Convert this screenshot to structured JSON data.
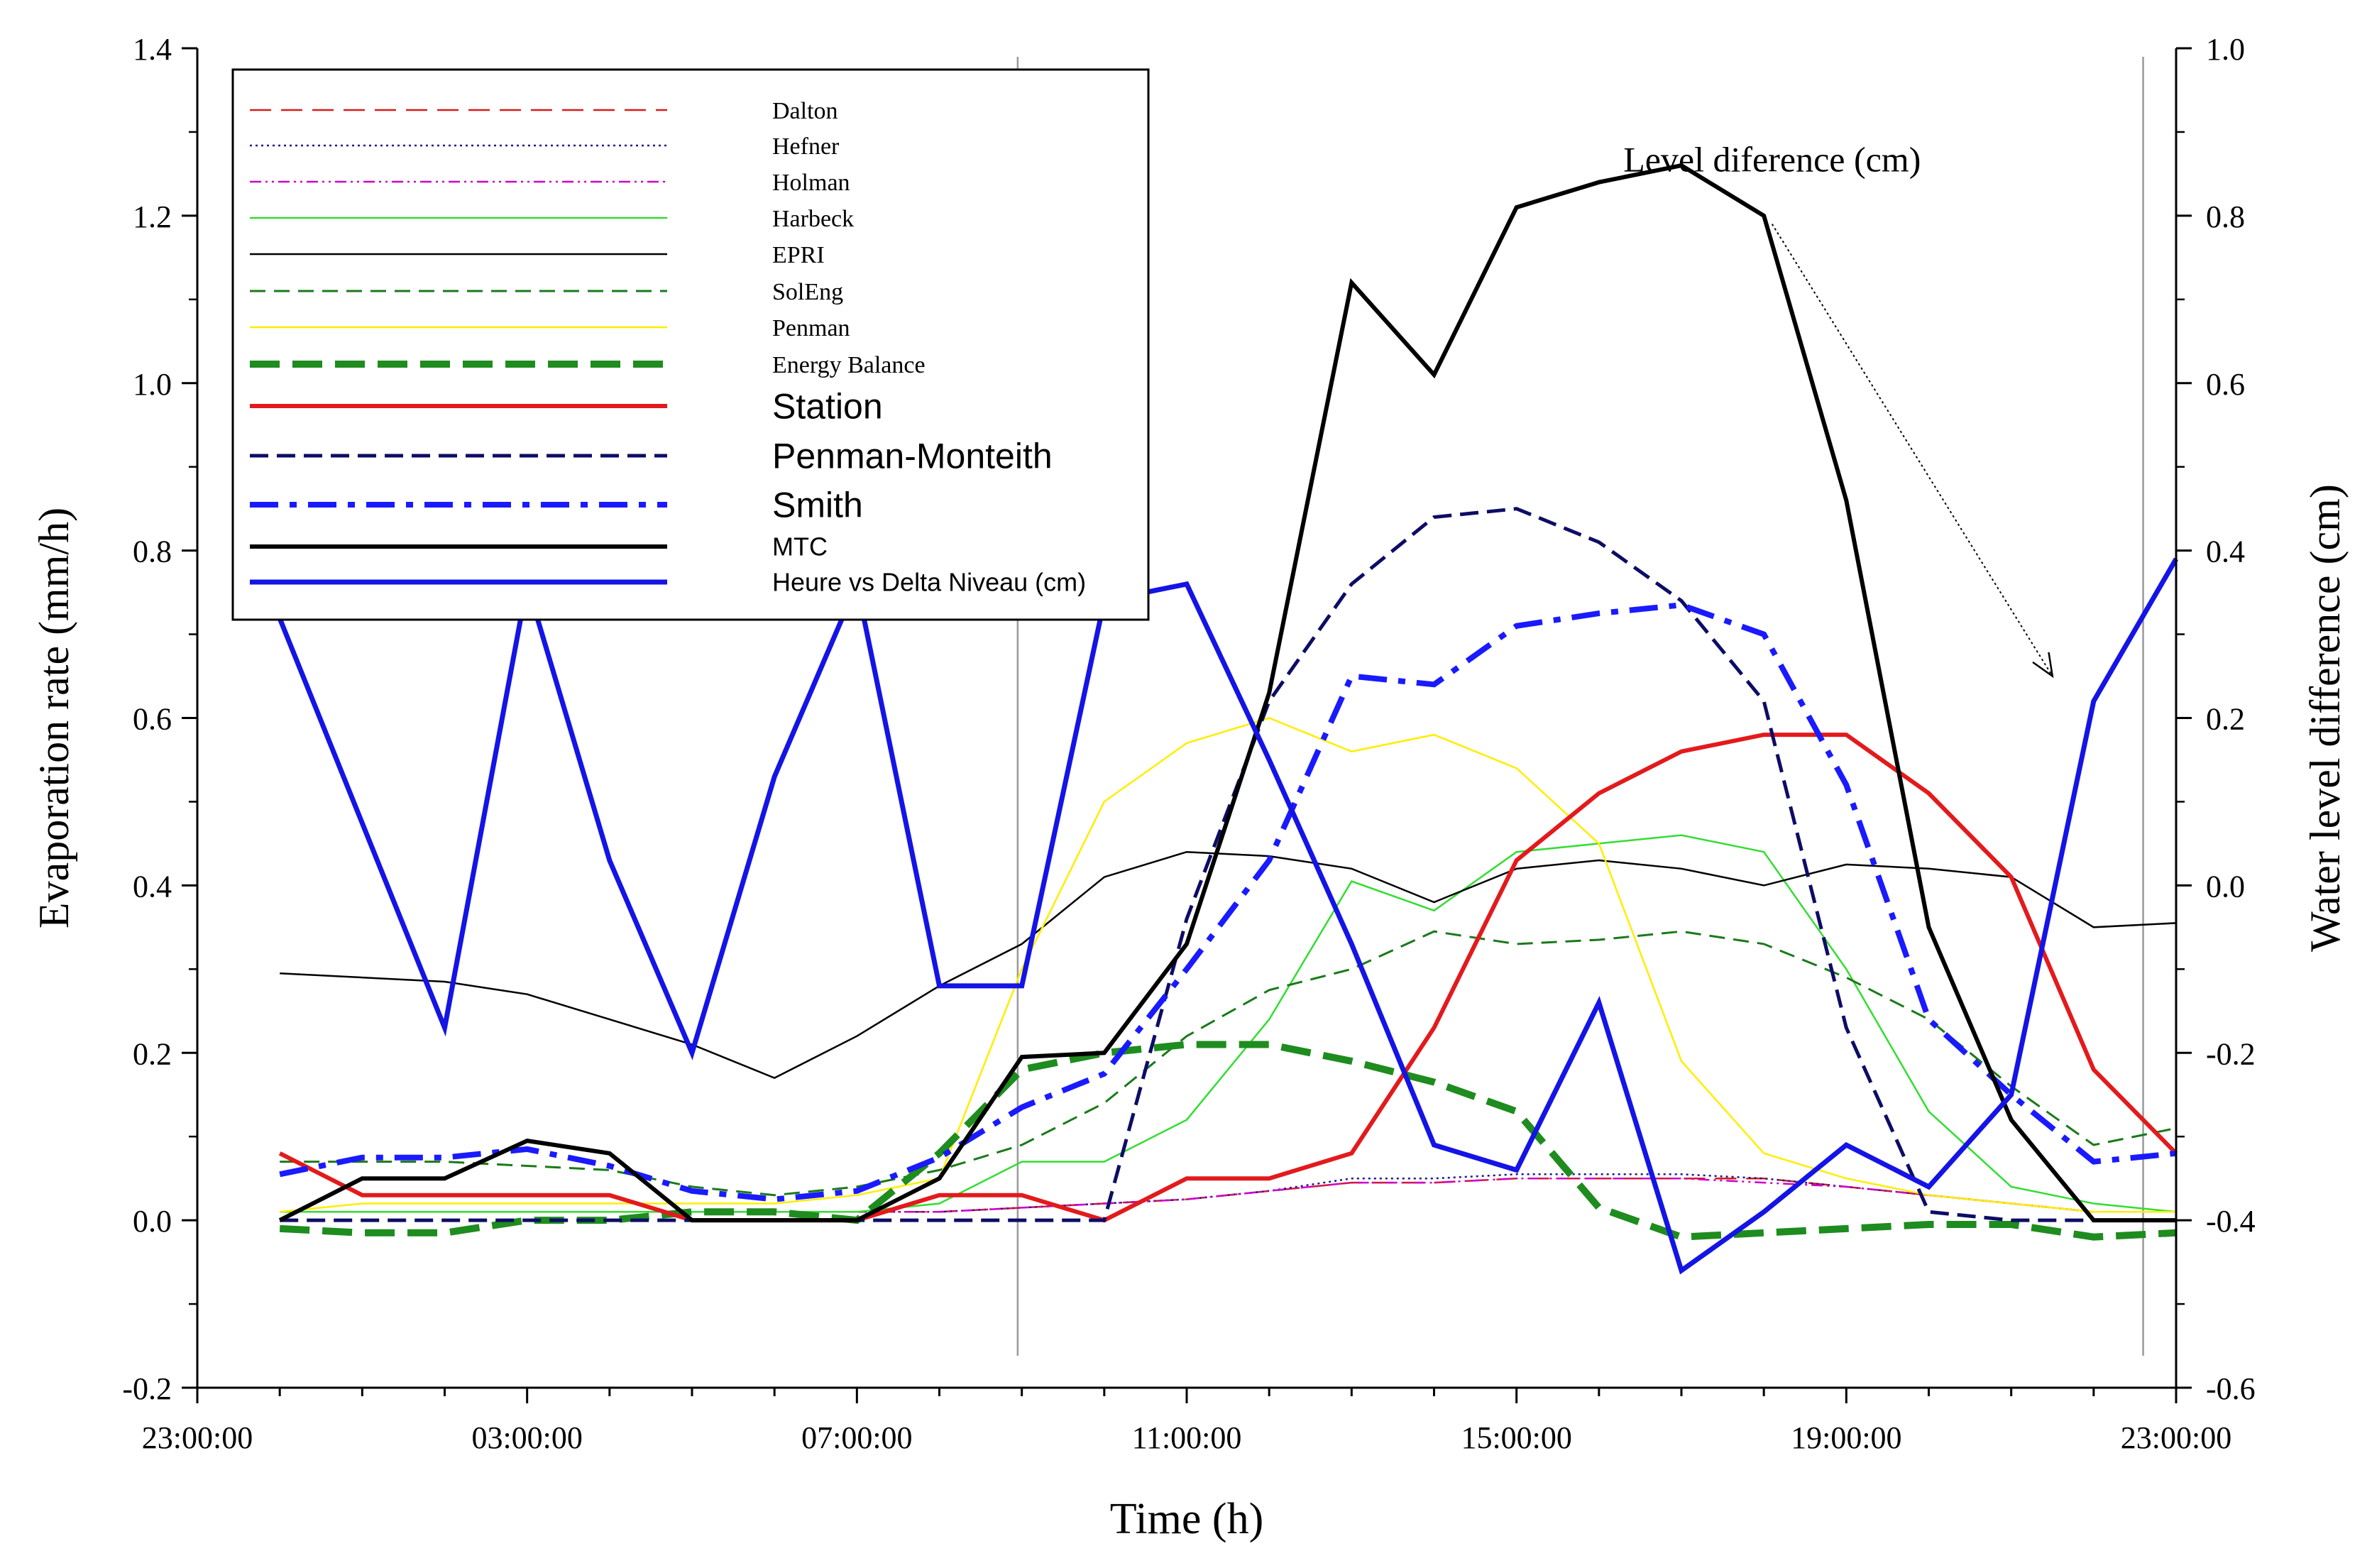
{
  "chart_data": {
    "type": "line",
    "xlabel": "Time (h)",
    "ylabel_left": "Evaporation rate (mm/h)",
    "ylabel_right": "Water level difference (cm)",
    "x_ticks": [
      "23:00:00",
      "03:00:00",
      "07:00:00",
      "11:00:00",
      "15:00:00",
      "19:00:00",
      "23:00:00"
    ],
    "x_tick_hours": [
      23,
      27,
      31,
      35,
      39,
      43,
      47
    ],
    "xlim": [
      23,
      47
    ],
    "ylim_left": [
      -0.2,
      1.4
    ],
    "ylim_right": [
      -0.6,
      1.0
    ],
    "y_ticks_left": [
      "-0.2",
      "0.0",
      "0.2",
      "0.4",
      "0.6",
      "0.8",
      "1.0",
      "1.2",
      "1.4"
    ],
    "y_ticks_right": [
      "-0.6",
      "-0.4",
      "-0.2",
      "0.0",
      "0.2",
      "0.4",
      "0.6",
      "0.8",
      "1.0"
    ],
    "reference_lines_hours": [
      32.95,
      46.6
    ],
    "annotation": {
      "text": "Level diference (cm)",
      "x": 42.1,
      "y": 1.27,
      "arrow_from": [
        42.1,
        1.19
      ],
      "arrow_to": [
        45.5,
        0.65
      ]
    },
    "hours": [
      24,
      25,
      26,
      27,
      28,
      29,
      30,
      31,
      32,
      33,
      34,
      35,
      36,
      37,
      38,
      39,
      40,
      41,
      42,
      43,
      44,
      45,
      46,
      47
    ],
    "series": [
      {
        "name": "Dalton",
        "axis": "left",
        "color": "#d81b1b",
        "width": 2.5,
        "dash": "30,14",
        "values": [
          0.01,
          0.01,
          0.01,
          0.01,
          0.01,
          0.01,
          0.01,
          0.01,
          0.01,
          0.015,
          0.02,
          0.025,
          0.035,
          0.045,
          0.045,
          0.05,
          0.05,
          0.05,
          0.05,
          0.04,
          0.03,
          0.02,
          0.01,
          0.01
        ]
      },
      {
        "name": "Hefner",
        "axis": "left",
        "color": "#1a1a8c",
        "width": 2.5,
        "dash": "3,5",
        "values": [
          0.01,
          0.01,
          0.01,
          0.01,
          0.01,
          0.01,
          0.01,
          0.01,
          0.01,
          0.015,
          0.02,
          0.025,
          0.035,
          0.05,
          0.05,
          0.055,
          0.055,
          0.055,
          0.05,
          0.04,
          0.03,
          0.02,
          0.01,
          0.01
        ]
      },
      {
        "name": "Holman",
        "axis": "left",
        "color": "#cc00cc",
        "width": 2.5,
        "dash": "16,6,3,6,3,6",
        "values": [
          0.01,
          0.01,
          0.01,
          0.01,
          0.01,
          0.01,
          0.01,
          0.01,
          0.01,
          0.015,
          0.02,
          0.025,
          0.035,
          0.045,
          0.045,
          0.05,
          0.05,
          0.05,
          0.045,
          0.04,
          0.03,
          0.02,
          0.01,
          0.01
        ]
      },
      {
        "name": "Harbeck",
        "axis": "left",
        "color": "#33dd33",
        "width": 2.5,
        "dash": "",
        "values": [
          0.01,
          0.01,
          0.01,
          0.01,
          0.01,
          0.01,
          0.01,
          0.01,
          0.02,
          0.07,
          0.07,
          0.12,
          0.24,
          0.405,
          0.37,
          0.44,
          0.45,
          0.46,
          0.44,
          0.3,
          0.13,
          0.04,
          0.02,
          0.01
        ]
      },
      {
        "name": "EPRI",
        "axis": "left",
        "color": "#000000",
        "width": 2.5,
        "dash": "",
        "values": [
          0.295,
          0.29,
          0.285,
          0.27,
          0.24,
          0.21,
          0.17,
          0.22,
          0.28,
          0.33,
          0.41,
          0.44,
          0.435,
          0.42,
          0.38,
          0.42,
          0.43,
          0.42,
          0.4,
          0.425,
          0.42,
          0.41,
          0.35,
          0.355
        ]
      },
      {
        "name": "SolEng",
        "axis": "left",
        "color": "#1a7a1a",
        "width": 3,
        "dash": "22,12",
        "values": [
          0.07,
          0.07,
          0.07,
          0.065,
          0.06,
          0.04,
          0.03,
          0.04,
          0.06,
          0.09,
          0.14,
          0.22,
          0.275,
          0.3,
          0.345,
          0.33,
          0.335,
          0.345,
          0.33,
          0.29,
          0.24,
          0.16,
          0.09,
          0.11
        ]
      },
      {
        "name": "Penman",
        "axis": "left",
        "color": "#ffee00",
        "width": 2.5,
        "dash": "",
        "values": [
          0.01,
          0.02,
          0.02,
          0.02,
          0.02,
          0.02,
          0.02,
          0.03,
          0.05,
          0.3,
          0.5,
          0.57,
          0.6,
          0.56,
          0.58,
          0.54,
          0.45,
          0.19,
          0.08,
          0.05,
          0.03,
          0.02,
          0.01,
          0.01
        ]
      },
      {
        "name": "Energy Balance",
        "axis": "left",
        "color": "#1e8c1e",
        "width": 10,
        "dash": "42,18",
        "values": [
          -0.01,
          -0.015,
          -0.015,
          0.0,
          0.0,
          0.01,
          0.01,
          0.0,
          0.08,
          0.18,
          0.2,
          0.21,
          0.21,
          0.19,
          0.165,
          0.13,
          0.015,
          -0.02,
          -0.015,
          -0.01,
          -0.005,
          -0.005,
          -0.02,
          -0.015
        ]
      },
      {
        "name": "Station",
        "axis": "left",
        "color": "#e31a1c",
        "width": 6,
        "dash": "",
        "values": [
          0.08,
          0.03,
          0.03,
          0.03,
          0.03,
          0.0,
          0.0,
          0.0,
          0.03,
          0.03,
          0.0,
          0.05,
          0.05,
          0.08,
          0.23,
          0.43,
          0.51,
          0.56,
          0.58,
          0.58,
          0.51,
          0.41,
          0.18,
          0.08
        ]
      },
      {
        "name": "Penman-Monteith",
        "axis": "left",
        "color": "#0d0d66",
        "width": 5,
        "dash": "26,12",
        "values": [
          0.0,
          0.0,
          0.0,
          0.0,
          0.0,
          0.0,
          0.0,
          0.0,
          0.0,
          0.0,
          0.0,
          0.36,
          0.62,
          0.76,
          0.84,
          0.85,
          0.81,
          0.74,
          0.62,
          0.23,
          0.01,
          0.0,
          0.0,
          0.0
        ]
      },
      {
        "name": "Smith",
        "axis": "left",
        "color": "#1a1aff",
        "width": 8,
        "dash": "40,16,10,16",
        "values": [
          0.055,
          0.075,
          0.075,
          0.085,
          0.065,
          0.035,
          0.025,
          0.035,
          0.075,
          0.135,
          0.175,
          0.3,
          0.43,
          0.65,
          0.64,
          0.71,
          0.725,
          0.735,
          0.7,
          0.52,
          0.24,
          0.15,
          0.07,
          0.08
        ]
      },
      {
        "name": "MTC",
        "axis": "left",
        "color": "#000000",
        "width": 6,
        "dash": "",
        "values": [
          0.0,
          0.05,
          0.05,
          0.095,
          0.08,
          0.0,
          0.0,
          0.0,
          0.05,
          0.195,
          0.2,
          0.33,
          0.63,
          1.12,
          1.01,
          1.21,
          1.24,
          1.26,
          1.2,
          0.86,
          0.35,
          0.12,
          0.0,
          0.0
        ]
      },
      {
        "name": "Heure vs Delta Niveau (cm)",
        "axis": "right",
        "color": "#1414e6",
        "width": 7,
        "dash": "",
        "values": [
          null,
          null,
          -0.17,
          0.36,
          0.03,
          -0.2,
          0.13,
          0.36,
          -0.12,
          -0.12,
          0.34,
          0.36,
          0.15,
          -0.07,
          -0.31,
          -0.34,
          -0.14,
          -0.46,
          -0.39,
          -0.31,
          -0.36,
          -0.25,
          0.22,
          0.39
        ]
      }
    ],
    "heure_lead_in": [
      23.75,
      0.38
    ],
    "legend": {
      "position": "top-left",
      "entries": [
        {
          "label": "Dalton",
          "font": "serif"
        },
        {
          "label": "Hefner",
          "font": "serif"
        },
        {
          "label": "Holman",
          "font": "serif"
        },
        {
          "label": "Harbeck",
          "font": "serif"
        },
        {
          "label": "EPRI",
          "font": "serif"
        },
        {
          "label": "SolEng",
          "font": "serif"
        },
        {
          "label": "Penman",
          "font": "serif"
        },
        {
          "label": "Energy Balance",
          "font": "serif"
        },
        {
          "label": "Station",
          "font": "sans-large"
        },
        {
          "label": "Penman-Monteith",
          "font": "sans-large"
        },
        {
          "label": "Smith",
          "font": "sans-large"
        },
        {
          "label": "MTC",
          "font": "sans"
        },
        {
          "label": "Heure vs Delta Niveau (cm)",
          "font": "sans"
        }
      ]
    }
  }
}
